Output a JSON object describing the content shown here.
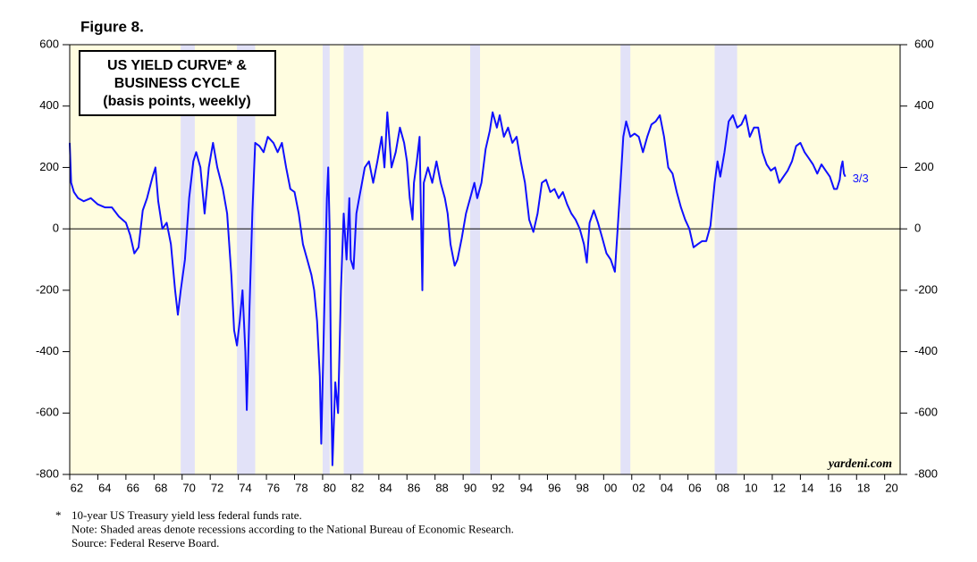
{
  "chart_data": {
    "type": "line",
    "figure_label": "Figure 8.",
    "title_lines": [
      "US YIELD CURVE* &",
      "BUSINESS CYCLE",
      "(basis points, weekly)"
    ],
    "annotation": "3/3",
    "watermark": "yardeni.com",
    "footnotes": [
      "*",
      "10-year US Treasury yield less federal funds rate.",
      "Note: Shaded areas denote recessions according to the National Bureau of Economic Research.",
      "Source: Federal Reserve Board."
    ],
    "color": "#1010ff",
    "recession_color": "#e2e2f8",
    "background": "#fffde0",
    "recessions": [
      [
        1969.9,
        1970.9
      ],
      [
        1973.9,
        1975.2
      ],
      [
        1980.0,
        1980.5
      ],
      [
        1981.5,
        1982.9
      ],
      [
        1990.5,
        1991.2
      ],
      [
        2001.2,
        2001.9
      ],
      [
        2007.9,
        2009.5
      ]
    ],
    "x": [
      1962.0,
      1962.1,
      1962.3,
      1962.6,
      1963.0,
      1963.5,
      1964.0,
      1964.5,
      1965.0,
      1965.5,
      1966.0,
      1966.3,
      1966.6,
      1966.9,
      1967.2,
      1967.5,
      1967.9,
      1968.1,
      1968.3,
      1968.6,
      1968.9,
      1969.2,
      1969.5,
      1969.7,
      1969.9,
      1970.2,
      1970.5,
      1970.8,
      1971.0,
      1971.3,
      1971.6,
      1971.9,
      1972.2,
      1972.5,
      1972.9,
      1973.2,
      1973.5,
      1973.7,
      1973.9,
      1974.1,
      1974.3,
      1974.5,
      1974.6,
      1974.8,
      1975.0,
      1975.2,
      1975.5,
      1975.8,
      1976.1,
      1976.5,
      1976.8,
      1977.1,
      1977.4,
      1977.7,
      1978.0,
      1978.3,
      1978.6,
      1978.9,
      1979.2,
      1979.4,
      1979.6,
      1979.8,
      1979.9,
      1980.1,
      1980.3,
      1980.4,
      1980.5,
      1980.6,
      1980.7,
      1980.9,
      1981.1,
      1981.3,
      1981.5,
      1981.7,
      1981.9,
      1982.0,
      1982.2,
      1982.4,
      1982.6,
      1982.8,
      1983.0,
      1983.3,
      1983.6,
      1983.9,
      1984.2,
      1984.4,
      1984.6,
      1984.9,
      1985.2,
      1985.5,
      1985.8,
      1986.0,
      1986.2,
      1986.4,
      1986.5,
      1986.7,
      1986.9,
      1987.1,
      1987.2,
      1987.5,
      1987.8,
      1988.1,
      1988.4,
      1988.7,
      1988.9,
      1989.1,
      1989.4,
      1989.6,
      1989.9,
      1990.2,
      1990.5,
      1990.8,
      1991.0,
      1991.3,
      1991.6,
      1991.9,
      1992.1,
      1992.4,
      1992.6,
      1992.9,
      1993.2,
      1993.5,
      1993.8,
      1994.1,
      1994.4,
      1994.7,
      1995.0,
      1995.3,
      1995.6,
      1995.9,
      1996.2,
      1996.5,
      1996.8,
      1997.1,
      1997.4,
      1997.7,
      1998.0,
      1998.3,
      1998.6,
      1998.8,
      1999.0,
      1999.3,
      1999.6,
      1999.9,
      2000.2,
      2000.5,
      2000.8,
      2001.0,
      2001.2,
      2001.4,
      2001.6,
      2001.9,
      2002.2,
      2002.5,
      2002.8,
      2003.1,
      2003.4,
      2003.7,
      2004.0,
      2004.3,
      2004.6,
      2004.9,
      2005.2,
      2005.5,
      2005.8,
      2006.1,
      2006.4,
      2006.7,
      2007.0,
      2007.3,
      2007.6,
      2007.9,
      2008.1,
      2008.3,
      2008.6,
      2008.9,
      2009.2,
      2009.5,
      2009.8,
      2010.1,
      2010.4,
      2010.7,
      2011.0,
      2011.3,
      2011.6,
      2011.9,
      2012.2,
      2012.5,
      2012.8,
      2013.1,
      2013.4,
      2013.7,
      2014.0,
      2014.3,
      2014.6,
      2014.9,
      2015.2,
      2015.5,
      2015.8,
      2016.1,
      2016.4,
      2016.6,
      2016.8,
      2016.9,
      2017.0,
      2017.1,
      2017.2
    ],
    "values": [
      280,
      150,
      120,
      100,
      90,
      100,
      80,
      70,
      70,
      40,
      20,
      -20,
      -80,
      -60,
      60,
      100,
      170,
      200,
      90,
      0,
      20,
      -50,
      -200,
      -280,
      -200,
      -100,
      100,
      220,
      250,
      200,
      50,
      200,
      280,
      200,
      130,
      50,
      -150,
      -330,
      -380,
      -300,
      -200,
      -400,
      -590,
      -250,
      50,
      280,
      270,
      250,
      300,
      280,
      250,
      280,
      200,
      130,
      120,
      50,
      -50,
      -100,
      -150,
      -200,
      -300,
      -480,
      -700,
      -300,
      100,
      200,
      0,
      -500,
      -770,
      -500,
      -600,
      -200,
      50,
      -100,
      100,
      -100,
      -130,
      50,
      100,
      150,
      200,
      220,
      150,
      220,
      300,
      200,
      380,
      200,
      250,
      330,
      280,
      220,
      100,
      30,
      150,
      220,
      300,
      -200,
      150,
      200,
      150,
      220,
      150,
      100,
      50,
      -50,
      -120,
      -100,
      -30,
      50,
      100,
      150,
      100,
      150,
      260,
      320,
      380,
      330,
      370,
      300,
      330,
      280,
      300,
      220,
      150,
      30,
      -10,
      50,
      150,
      160,
      120,
      130,
      100,
      120,
      80,
      50,
      30,
      0,
      -50,
      -110,
      20,
      60,
      20,
      -30,
      -80,
      -100,
      -140,
      0,
      150,
      300,
      350,
      300,
      310,
      300,
      250,
      300,
      340,
      350,
      370,
      300,
      200,
      180,
      120,
      70,
      30,
      0,
      -60,
      -50,
      -40,
      -40,
      10,
      150,
      220,
      170,
      250,
      350,
      370,
      330,
      340,
      370,
      300,
      330,
      330,
      250,
      210,
      190,
      200,
      150,
      170,
      190,
      220,
      270,
      280,
      250,
      230,
      210,
      180,
      210,
      190,
      170,
      130,
      130,
      160,
      200,
      220,
      180,
      170
    ],
    "xlim": [
      1962,
      2021.1
    ],
    "xticks": [
      {
        "value": 1962,
        "label": "62"
      },
      {
        "value": 1964,
        "label": "64"
      },
      {
        "value": 1966,
        "label": "66"
      },
      {
        "value": 1968,
        "label": "68"
      },
      {
        "value": 1970,
        "label": "70"
      },
      {
        "value": 1972,
        "label": "72"
      },
      {
        "value": 1974,
        "label": "74"
      },
      {
        "value": 1976,
        "label": "76"
      },
      {
        "value": 1978,
        "label": "78"
      },
      {
        "value": 1980,
        "label": "80"
      },
      {
        "value": 1982,
        "label": "82"
      },
      {
        "value": 1984,
        "label": "84"
      },
      {
        "value": 1986,
        "label": "86"
      },
      {
        "value": 1988,
        "label": "88"
      },
      {
        "value": 1990,
        "label": "90"
      },
      {
        "value": 1992,
        "label": "92"
      },
      {
        "value": 1994,
        "label": "94"
      },
      {
        "value": 1996,
        "label": "96"
      },
      {
        "value": 1998,
        "label": "98"
      },
      {
        "value": 2000,
        "label": "00"
      },
      {
        "value": 2002,
        "label": "02"
      },
      {
        "value": 2004,
        "label": "04"
      },
      {
        "value": 2006,
        "label": "06"
      },
      {
        "value": 2008,
        "label": "08"
      },
      {
        "value": 2010,
        "label": "10"
      },
      {
        "value": 2012,
        "label": "12"
      },
      {
        "value": 2014,
        "label": "14"
      },
      {
        "value": 2016,
        "label": "16"
      },
      {
        "value": 2018,
        "label": "18"
      },
      {
        "value": 2020,
        "label": "20"
      }
    ],
    "ylim": [
      -800,
      600
    ],
    "yticks": [
      600,
      400,
      200,
      0,
      -200,
      -400,
      -600,
      -800
    ],
    "y2lim": [
      -800,
      600
    ],
    "y2ticks": [
      600,
      400,
      200,
      0,
      -200,
      -400,
      -600,
      -800
    ]
  }
}
